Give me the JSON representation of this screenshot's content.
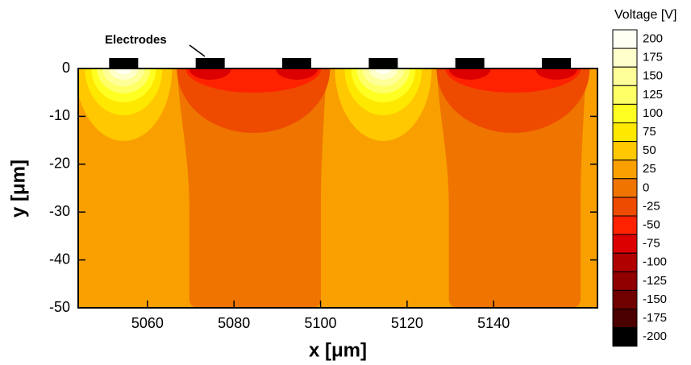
{
  "chart_data": {
    "type": "contour",
    "x_label": "x [μm]",
    "y_label": "y [μm]",
    "xlim": [
      5044,
      5164
    ],
    "ylim": [
      -50,
      0
    ],
    "xticks": [
      5060,
      5080,
      5100,
      5120,
      5140
    ],
    "yticks": [
      0,
      -10,
      -20,
      -30,
      -40,
      -50
    ],
    "annotation": "Electrodes",
    "electrodes": [
      5054.5,
      5074.5,
      5094.5,
      5114.5,
      5134.5,
      5154.5
    ],
    "colorbar": {
      "title": "Voltage [V]",
      "levels": [
        200,
        175,
        150,
        125,
        100,
        75,
        50,
        25,
        0,
        -25,
        -50,
        -75,
        -100,
        -125,
        -150,
        -175,
        -200
      ],
      "colors": [
        "#fffff4",
        "#ffffcc",
        "#ffff99",
        "#ffff66",
        "#ffff22",
        "#ffe800",
        "#ffc800",
        "#f9a000",
        "#f07400",
        "#ee4a00",
        "#ff2200",
        "#dd0000",
        "#b00000",
        "#900000",
        "#700000",
        "#4a0000",
        "#000000"
      ]
    }
  }
}
